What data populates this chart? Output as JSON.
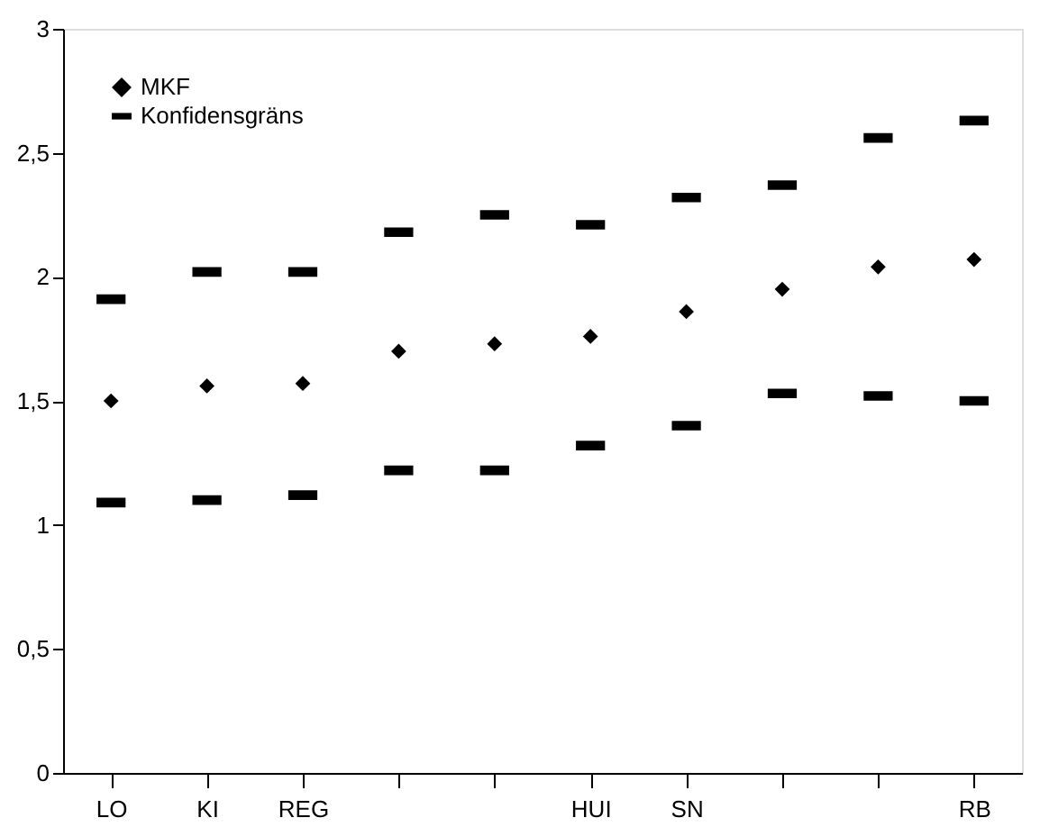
{
  "chart_data": {
    "type": "scatter",
    "categories": [
      "LO",
      "KI",
      "REG",
      null,
      null,
      "HUI",
      "SN",
      null,
      null,
      "RB"
    ],
    "series": [
      {
        "name": "MKF",
        "color": "#000000",
        "marker": "diamond",
        "values": [
          1.5,
          1.56,
          1.57,
          1.7,
          1.73,
          1.76,
          1.86,
          1.95,
          2.04,
          2.07
        ]
      },
      {
        "name": "Konfidensgräns",
        "color": "#000000",
        "marker": "square",
        "values": [
          1.91,
          2.02,
          2.02,
          2.18,
          2.25,
          2.21,
          2.32,
          2.37,
          2.56,
          2.63
        ]
      },
      {
        "color": "#000000",
        "marker": "square",
        "values": [
          1.09,
          1.1,
          1.12,
          1.22,
          1.22,
          1.32,
          1.4,
          1.53,
          1.52,
          1.5
        ]
      }
    ],
    "ylim": [
      0,
      3
    ],
    "yticks": [
      0,
      {
        "value": 0.5,
        "label": "0,5"
      },
      1,
      {
        "value": 1.5,
        "label": "1,5"
      },
      2,
      {
        "value": 2.5,
        "label": "2,5"
      },
      3
    ],
    "grid": false,
    "legend": "top left"
  }
}
